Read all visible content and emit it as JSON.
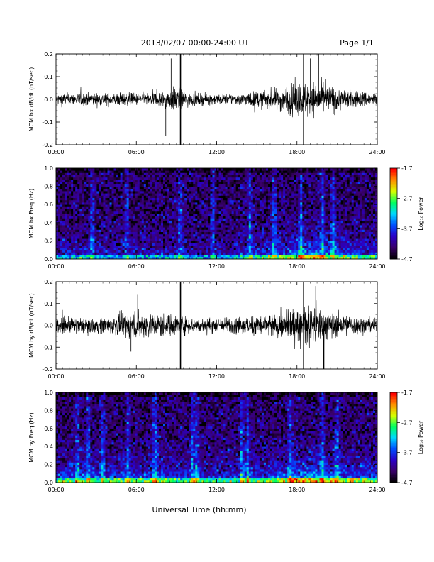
{
  "header": {
    "date_range": "2013/02/07  00:00-24:00 UT",
    "page": "Page 1/1"
  },
  "footer": {
    "xlabel": "Universal Time (hh:mm)"
  },
  "colors": {
    "trace": "#000000",
    "colormap": [
      "#000000",
      "#3a006a",
      "#2a00c8",
      "#0050ff",
      "#00d8ff",
      "#00ff60",
      "#d8ff00",
      "#ff9000",
      "#ff0000"
    ]
  },
  "chart_data": [
    {
      "type": "line",
      "ylabel": "MCM bx dB/dt (nT/sec)",
      "xlim": [
        0,
        24
      ],
      "ylim": [
        -0.2,
        0.2
      ],
      "xticks": [
        "00:00",
        "06:00",
        "12:00",
        "18:00",
        "24:00"
      ],
      "yticks": [
        "-0.2",
        "-0.1",
        "0.0",
        "0.1",
        "0.2"
      ],
      "envelope": {
        "hours": [
          0,
          2,
          4,
          6,
          8,
          9,
          10,
          12,
          14,
          15,
          16,
          17,
          18,
          19,
          20,
          21,
          22,
          23,
          24
        ],
        "amplitude": [
          0.03,
          0.03,
          0.03,
          0.03,
          0.04,
          0.06,
          0.03,
          0.025,
          0.03,
          0.04,
          0.05,
          0.06,
          0.08,
          0.09,
          0.07,
          0.06,
          0.04,
          0.04,
          0.03
        ]
      },
      "spikes": [
        {
          "hour": 8.2,
          "value": -0.16
        },
        {
          "hour": 8.6,
          "value": 0.18
        },
        {
          "hour": 9.3,
          "value": 0.2
        },
        {
          "hour": 9.3,
          "value": -0.2
        },
        {
          "hour": 18.5,
          "value": 0.2
        },
        {
          "hour": 18.5,
          "value": -0.2
        },
        {
          "hour": 19.0,
          "value": 0.18
        },
        {
          "hour": 19.6,
          "value": 0.2
        },
        {
          "hour": 20.1,
          "value": -0.19
        }
      ]
    },
    {
      "type": "heatmap",
      "ylabel": "MCM bx Freq (Hz)",
      "colorbar_label": "Log₁₀ Power",
      "xlim": [
        0,
        24
      ],
      "ylim": [
        0,
        1.0
      ],
      "xticks": [
        "00:00",
        "06:00",
        "12:00",
        "18:00",
        "24:00"
      ],
      "yticks": [
        "0.0",
        "0.2",
        "0.4",
        "0.6",
        "0.8",
        "1.0"
      ],
      "clim": [
        -4.7,
        -1.7
      ],
      "colorbar_ticks": [
        "-1.7",
        "-2.7",
        "-3.7",
        "-4.7"
      ],
      "activity": {
        "hours": [
          0,
          2,
          4,
          6,
          8,
          10,
          12,
          14,
          16,
          18,
          19,
          20,
          22,
          24
        ],
        "level": [
          0.25,
          0.3,
          0.25,
          0.25,
          0.3,
          0.25,
          0.2,
          0.35,
          0.5,
          0.65,
          0.75,
          0.6,
          0.5,
          0.4
        ]
      },
      "streaks": [
        2.7,
        5.3,
        9.3,
        11.7,
        14.5,
        16.3,
        18.3,
        19.9,
        20.7
      ]
    },
    {
      "type": "line",
      "ylabel": "MCM by dB/dt (nT/sec)",
      "xlim": [
        0,
        24
      ],
      "ylim": [
        -0.2,
        0.2
      ],
      "xticks": [
        "00:00",
        "06:00",
        "12:00",
        "18:00",
        "24:00"
      ],
      "yticks": [
        "-0.2",
        "-0.1",
        "0.0",
        "0.1",
        "0.2"
      ],
      "envelope": {
        "hours": [
          0,
          2,
          4,
          5,
          6,
          7,
          8,
          9,
          10,
          12,
          14,
          16,
          17,
          18,
          19,
          20,
          21,
          22,
          24
        ],
        "amplitude": [
          0.035,
          0.04,
          0.04,
          0.06,
          0.07,
          0.06,
          0.06,
          0.05,
          0.04,
          0.035,
          0.045,
          0.06,
          0.065,
          0.08,
          0.1,
          0.08,
          0.06,
          0.05,
          0.035
        ]
      },
      "spikes": [
        {
          "hour": 5.6,
          "value": -0.12
        },
        {
          "hour": 6.1,
          "value": 0.14
        },
        {
          "hour": 9.3,
          "value": 0.2
        },
        {
          "hour": 9.3,
          "value": -0.2
        },
        {
          "hour": 18.5,
          "value": 0.2
        },
        {
          "hour": 18.5,
          "value": -0.2
        },
        {
          "hour": 19.4,
          "value": 0.18
        },
        {
          "hour": 20.0,
          "value": -0.2
        }
      ]
    },
    {
      "type": "heatmap",
      "ylabel": "MCM by Freq (Hz)",
      "colorbar_label": "Log₁₀ Power",
      "xlim": [
        0,
        24
      ],
      "ylim": [
        0,
        1.0
      ],
      "xticks": [
        "00:00",
        "06:00",
        "12:00",
        "18:00",
        "24:00"
      ],
      "yticks": [
        "0.0",
        "0.2",
        "0.4",
        "0.6",
        "0.8",
        "1.0"
      ],
      "clim": [
        -4.7,
        -1.7
      ],
      "colorbar_ticks": [
        "-1.7",
        "-2.7",
        "-3.7",
        "-4.7"
      ],
      "activity": {
        "hours": [
          0,
          2,
          4,
          6,
          8,
          10,
          12,
          14,
          16,
          18,
          19,
          20,
          22,
          24
        ],
        "level": [
          0.45,
          0.5,
          0.45,
          0.5,
          0.55,
          0.45,
          0.4,
          0.45,
          0.55,
          0.7,
          0.8,
          0.7,
          0.6,
          0.5
        ]
      },
      "streaks": [
        1.6,
        2.4,
        3.5,
        5.4,
        7.4,
        10.2,
        10.5,
        13.9,
        14.3,
        17.5,
        19.9,
        21.0
      ]
    }
  ]
}
